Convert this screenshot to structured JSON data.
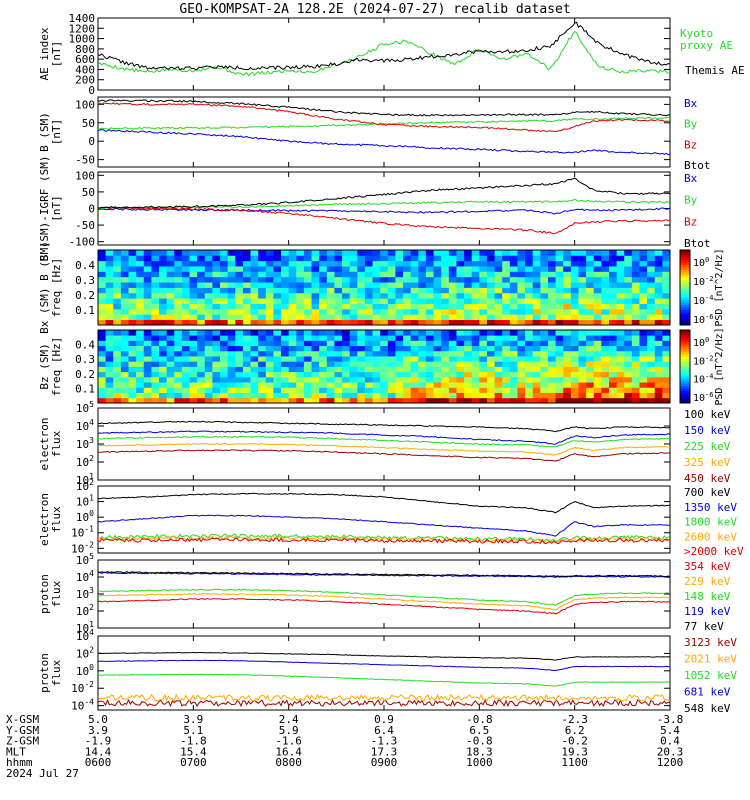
{
  "title": "GEO-KOMPSAT-2A 128.2E (2024-07-27) recalib dataset",
  "colors": {
    "black": "#000000",
    "green": "#22dd22",
    "red": "#dd0000",
    "blue": "#0000dd",
    "orange": "#ffaa00",
    "darkred": "#990000"
  },
  "chart_data": [
    {
      "type": "line",
      "id": "ae",
      "ylabel": "AE index",
      "yunit": "[nT]",
      "yticks": [
        "0",
        "200",
        "400",
        "600",
        "800",
        "1000",
        "1200",
        "1400"
      ],
      "ylim": [
        0,
        1400
      ],
      "x": [
        6.0,
        6.25,
        6.5,
        6.75,
        7.0,
        7.25,
        7.5,
        7.75,
        8.0,
        8.25,
        8.5,
        8.75,
        9.0,
        9.25,
        9.5,
        9.75,
        10.0,
        10.25,
        10.5,
        10.75,
        11.0,
        11.25,
        11.5,
        11.75,
        12.0
      ],
      "series": [
        {
          "name": "Kyoto proxy AE",
          "label_lines": [
            "Kyoto",
            "proxy AE"
          ],
          "color": "#22dd22",
          "values": [
            520,
            420,
            350,
            400,
            380,
            450,
            300,
            330,
            380,
            350,
            500,
            650,
            900,
            950,
            700,
            500,
            800,
            600,
            700,
            400,
            1150,
            450,
            350,
            380,
            350
          ]
        },
        {
          "name": "Themis AE",
          "label_lines": [
            "Themis AE"
          ],
          "color": "#000000",
          "values": [
            700,
            550,
            430,
            420,
            430,
            450,
            430,
            420,
            440,
            460,
            500,
            600,
            560,
            600,
            650,
            700,
            760,
            740,
            780,
            850,
            1320,
            900,
            700,
            550,
            500
          ]
        }
      ]
    },
    {
      "type": "line",
      "id": "bsm",
      "ylabel": "B (SM)",
      "yunit": "[nT]",
      "yticks": [
        "-50",
        "0",
        "50",
        "100"
      ],
      "ylim": [
        -70,
        120
      ],
      "x": [
        6.0,
        6.5,
        7.0,
        7.5,
        8.0,
        8.5,
        9.0,
        9.5,
        10.0,
        10.5,
        10.8,
        11.0,
        11.2,
        11.5,
        12.0
      ],
      "series": [
        {
          "name": "Bx",
          "color": "#0000dd",
          "values": [
            30,
            25,
            20,
            12,
            0,
            -8,
            -12,
            -18,
            -22,
            -28,
            -30,
            -30,
            -25,
            -30,
            -35
          ]
        },
        {
          "name": "By",
          "color": "#22dd22",
          "values": [
            35,
            35,
            36,
            38,
            40,
            43,
            47,
            50,
            52,
            55,
            55,
            60,
            60,
            62,
            63
          ]
        },
        {
          "name": "Bz",
          "color": "#dd0000",
          "values": [
            102,
            100,
            100,
            95,
            80,
            60,
            45,
            40,
            38,
            30,
            25,
            40,
            55,
            58,
            55
          ]
        },
        {
          "name": "Btot",
          "color": "#000000",
          "values": [
            110,
            110,
            108,
            102,
            92,
            80,
            72,
            70,
            72,
            72,
            72,
            78,
            80,
            75,
            70
          ]
        }
      ]
    },
    {
      "type": "line",
      "id": "bsm_igrf",
      "ylabel": "B (SM)-IGRF (SM)",
      "yunit": "[nT]",
      "yticks": [
        "-100",
        "-50",
        "0",
        "50",
        "100"
      ],
      "ylim": [
        -110,
        110
      ],
      "x": [
        6.0,
        6.5,
        7.0,
        7.5,
        8.0,
        8.5,
        9.0,
        9.5,
        10.0,
        10.5,
        10.8,
        11.0,
        11.2,
        11.5,
        12.0
      ],
      "series": [
        {
          "name": "Bx",
          "color": "#0000dd",
          "values": [
            -2,
            -3,
            -4,
            -5,
            -6,
            -8,
            -10,
            -12,
            -8,
            -5,
            -15,
            -2,
            -5,
            -5,
            0
          ]
        },
        {
          "name": "By",
          "color": "#22dd22",
          "values": [
            2,
            3,
            4,
            5,
            8,
            12,
            15,
            18,
            20,
            20,
            20,
            25,
            22,
            20,
            18
          ]
        },
        {
          "name": "Bz",
          "color": "#dd0000",
          "values": [
            2,
            0,
            -2,
            -5,
            -15,
            -30,
            -45,
            -55,
            -60,
            -65,
            -75,
            -45,
            -40,
            -38,
            -35
          ]
        },
        {
          "name": "Btot",
          "color": "#000000",
          "values": [
            3,
            4,
            6,
            10,
            18,
            30,
            42,
            55,
            62,
            70,
            75,
            90,
            55,
            45,
            45
          ]
        }
      ]
    },
    {
      "type": "heatmap",
      "id": "bx_spec",
      "ylabel": "Bx (SM) B (SM)",
      "ylabel2": "freq [Hz]",
      "yticks": [
        "0.1",
        "0.2",
        "0.3",
        "0.4"
      ],
      "ylim": [
        0,
        0.5
      ],
      "cbar_ticks": [
        "10^0",
        "10^-2",
        "10^-4",
        "10^-6"
      ],
      "cbar_label": "PSD [nT^2/Hz]"
    },
    {
      "type": "heatmap",
      "id": "bz_spec",
      "ylabel": "Bz (SM)",
      "ylabel2": "freq [Hz]",
      "yticks": [
        "0.1",
        "0.2",
        "0.3",
        "0.4"
      ],
      "ylim": [
        0,
        0.5
      ],
      "cbar_ticks": [
        "10^0",
        "10^-2",
        "10^-4",
        "10^-6"
      ],
      "cbar_label": "PSD [nT^2/Hz]"
    },
    {
      "type": "line",
      "id": "elec1",
      "log": true,
      "ylabel": "electron",
      "ylabel2": "flux",
      "yticks": [
        {
          "m": "10",
          "e": "1"
        },
        {
          "m": "10",
          "e": "2"
        },
        {
          "m": "10",
          "e": "3"
        },
        {
          "m": "10",
          "e": "4"
        },
        {
          "m": "10",
          "e": "5"
        }
      ],
      "ylim": [
        1,
        5
      ],
      "x": [
        6.0,
        6.5,
        7.0,
        7.5,
        8.0,
        8.5,
        9.0,
        9.5,
        10.0,
        10.5,
        10.8,
        11.0,
        11.2,
        11.5,
        12.0
      ],
      "series": [
        {
          "name": "100 keV",
          "color": "#000000",
          "values": [
            4.15,
            4.2,
            4.25,
            4.2,
            4.15,
            4.1,
            4.05,
            4.0,
            3.95,
            3.85,
            3.7,
            3.95,
            3.85,
            3.95,
            3.9
          ]
        },
        {
          "name": "150 keV",
          "color": "#0000dd",
          "values": [
            3.6,
            3.65,
            3.7,
            3.68,
            3.65,
            3.6,
            3.5,
            3.4,
            3.25,
            3.15,
            3.0,
            3.45,
            3.35,
            3.5,
            3.55
          ]
        },
        {
          "name": "225 keV",
          "color": "#22dd22",
          "values": [
            3.3,
            3.35,
            3.4,
            3.4,
            3.38,
            3.3,
            3.2,
            3.1,
            3.0,
            2.95,
            2.85,
            3.2,
            3.1,
            3.25,
            3.3
          ]
        },
        {
          "name": "325 keV",
          "color": "#ffaa00",
          "values": [
            2.9,
            2.95,
            3.0,
            3.0,
            2.98,
            2.9,
            2.8,
            2.7,
            2.6,
            2.55,
            2.4,
            2.8,
            2.65,
            2.8,
            2.85
          ]
        },
        {
          "name": "450 keV",
          "color": "#990000",
          "values": [
            2.55,
            2.6,
            2.65,
            2.65,
            2.62,
            2.55,
            2.45,
            2.35,
            2.25,
            2.2,
            2.05,
            2.45,
            2.3,
            2.45,
            2.5
          ]
        }
      ]
    },
    {
      "type": "line",
      "id": "elec2",
      "log": true,
      "ylabel": "electron",
      "ylabel2": "flux",
      "yticks": [
        {
          "m": "10",
          "e": "-2"
        },
        {
          "m": "10",
          "e": "-1"
        },
        {
          "m": "10",
          "e": "0"
        },
        {
          "m": "10",
          "e": "1"
        },
        {
          "m": "10",
          "e": "2"
        }
      ],
      "ylim": [
        -2.3,
        2
      ],
      "x": [
        6.0,
        6.5,
        7.0,
        7.5,
        8.0,
        8.5,
        9.0,
        9.5,
        10.0,
        10.5,
        10.8,
        11.0,
        11.2,
        11.5,
        12.0
      ],
      "series": [
        {
          "name": "700 keV",
          "color": "#000000",
          "values": [
            1.2,
            1.3,
            1.45,
            1.5,
            1.5,
            1.45,
            1.3,
            1.0,
            0.7,
            0.6,
            0.3,
            1.0,
            0.6,
            0.7,
            0.75
          ]
        },
        {
          "name": "1350 keV",
          "color": "#0000dd",
          "values": [
            -0.3,
            -0.1,
            0.1,
            0.1,
            0.0,
            -0.1,
            -0.3,
            -0.5,
            -0.7,
            -0.9,
            -1.2,
            -0.3,
            -0.6,
            -0.5,
            -0.5
          ]
        },
        {
          "name": "1800 keV",
          "color": "#22dd22",
          "values": [
            -1.3,
            -1.25,
            -1.2,
            -1.2,
            -1.2,
            -1.25,
            -1.3,
            -1.35,
            -1.4,
            -1.4,
            -1.5,
            -1.3,
            -1.35,
            -1.3,
            -1.3
          ]
        },
        {
          "name": "2600 keV",
          "color": "#ffaa00",
          "values": [
            -1.4,
            -1.38,
            -1.35,
            -1.35,
            -1.35,
            -1.38,
            -1.4,
            -1.45,
            -1.48,
            -1.5,
            -1.55,
            -1.4,
            -1.42,
            -1.4,
            -1.4
          ]
        },
        {
          "name": ">2000 keV",
          "color": "#dd0000",
          "values": [
            -1.5,
            -1.48,
            -1.45,
            -1.45,
            -1.45,
            -1.48,
            -1.5,
            -1.52,
            -1.55,
            -1.55,
            -1.6,
            -1.5,
            -1.5,
            -1.48,
            -1.5
          ]
        }
      ]
    },
    {
      "type": "line",
      "id": "prot1",
      "log": true,
      "ylabel": "proton",
      "ylabel2": "flux",
      "yticks": [
        {
          "m": "10",
          "e": "1"
        },
        {
          "m": "10",
          "e": "2"
        },
        {
          "m": "10",
          "e": "3"
        },
        {
          "m": "10",
          "e": "4"
        },
        {
          "m": "10",
          "e": "5"
        }
      ],
      "ylim": [
        1,
        5
      ],
      "x": [
        6.0,
        6.5,
        7.0,
        7.5,
        8.0,
        8.5,
        9.0,
        9.5,
        10.0,
        10.5,
        10.8,
        11.0,
        11.2,
        11.5,
        12.0
      ],
      "series": [
        {
          "name": "354 keV",
          "color": "#dd0000",
          "values": [
            2.55,
            2.62,
            2.7,
            2.7,
            2.65,
            2.55,
            2.4,
            2.25,
            2.1,
            2.0,
            1.85,
            2.4,
            2.5,
            2.55,
            2.55
          ]
        },
        {
          "name": "229 keV",
          "color": "#ffaa00",
          "values": [
            2.9,
            2.95,
            3.0,
            3.0,
            2.95,
            2.85,
            2.7,
            2.55,
            2.4,
            2.3,
            2.1,
            2.65,
            2.75,
            2.8,
            2.8
          ]
        },
        {
          "name": "148 keV",
          "color": "#22dd22",
          "values": [
            3.15,
            3.2,
            3.25,
            3.25,
            3.2,
            3.1,
            2.95,
            2.8,
            2.65,
            2.55,
            2.35,
            2.9,
            3.0,
            3.05,
            3.05
          ]
        },
        {
          "name": "119 keV",
          "color": "#0000dd",
          "values": [
            4.25,
            4.22,
            4.2,
            4.18,
            4.15,
            4.12,
            4.1,
            4.08,
            4.05,
            4.03,
            4.0,
            4.02,
            4.02,
            4.02,
            4.0
          ]
        },
        {
          "name": "77 keV",
          "color": "#000000",
          "values": [
            4.3,
            4.27,
            4.25,
            4.22,
            4.2,
            4.17,
            4.15,
            4.12,
            4.1,
            4.08,
            4.05,
            4.07,
            4.07,
            4.07,
            4.05
          ]
        }
      ]
    },
    {
      "type": "line",
      "id": "prot2",
      "log": true,
      "ylabel": "proton",
      "ylabel2": "flux",
      "yticks": [
        {
          "m": "10",
          "e": "-4"
        },
        {
          "m": "10",
          "e": "-2"
        },
        {
          "m": "10",
          "e": "0"
        },
        {
          "m": "10",
          "e": "2"
        },
        {
          "m": "10",
          "e": "4"
        }
      ],
      "ylim": [
        -4.5,
        4
      ],
      "x": [
        6.0,
        6.5,
        7.0,
        7.5,
        8.0,
        8.5,
        9.0,
        9.5,
        10.0,
        10.5,
        10.8,
        11.0,
        11.2,
        11.5,
        12.0
      ],
      "series": [
        {
          "name": "3123 keV",
          "color": "#990000",
          "values": [
            -3.7,
            -3.7,
            -3.7,
            -3.7,
            -3.7,
            -3.7,
            -3.7,
            -3.7,
            -3.7,
            -3.7,
            -3.7,
            -3.7,
            -3.7,
            -3.7,
            -3.7
          ]
        },
        {
          "name": "2021 keV",
          "color": "#ffaa00",
          "values": [
            -3.1,
            -3.1,
            -3.1,
            -3.1,
            -3.1,
            -3.1,
            -3.1,
            -3.1,
            -3.1,
            -3.1,
            -3.1,
            -3.1,
            -3.1,
            -3.1,
            -3.1
          ]
        },
        {
          "name": "1052 keV",
          "color": "#22dd22",
          "values": [
            -0.5,
            -0.45,
            -0.4,
            -0.45,
            -0.6,
            -0.8,
            -1.0,
            -1.2,
            -1.4,
            -1.5,
            -1.75,
            -1.3,
            -1.3,
            -1.3,
            -1.3
          ]
        },
        {
          "name": "681 keV",
          "color": "#0000dd",
          "values": [
            1.1,
            1.15,
            1.2,
            1.15,
            1.0,
            0.85,
            0.7,
            0.55,
            0.4,
            0.3,
            0.05,
            0.5,
            0.5,
            0.5,
            0.5
          ]
        },
        {
          "name": "548 keV",
          "color": "#000000",
          "values": [
            2.0,
            2.05,
            2.1,
            2.05,
            1.95,
            1.85,
            1.7,
            1.6,
            1.5,
            1.45,
            1.25,
            1.6,
            1.6,
            1.6,
            1.6
          ]
        }
      ]
    }
  ],
  "xaxis": {
    "rows": [
      {
        "label": "X-GSM",
        "values": [
          "5.0",
          "3.9",
          "2.4",
          "0.9",
          "-0.8",
          "-2.3",
          "-3.8"
        ]
      },
      {
        "label": "Y-GSM",
        "values": [
          "3.9",
          "5.1",
          "5.9",
          "6.4",
          "6.5",
          "6.2",
          "5.4"
        ]
      },
      {
        "label": "Z-GSM",
        "values": [
          "-1.9",
          "-1.8",
          "-1.6",
          "-1.3",
          "-0.8",
          "-0.2",
          "0.4"
        ]
      },
      {
        "label": "MLT",
        "values": [
          "14.4",
          "15.4",
          "16.4",
          "17.3",
          "18.3",
          "19.3",
          "20.3"
        ]
      },
      {
        "label": "hhmm",
        "values": [
          "0600",
          "0700",
          "0800",
          "0900",
          "1000",
          "1100",
          "1200"
        ]
      }
    ],
    "date": "2024 Jul 27"
  }
}
